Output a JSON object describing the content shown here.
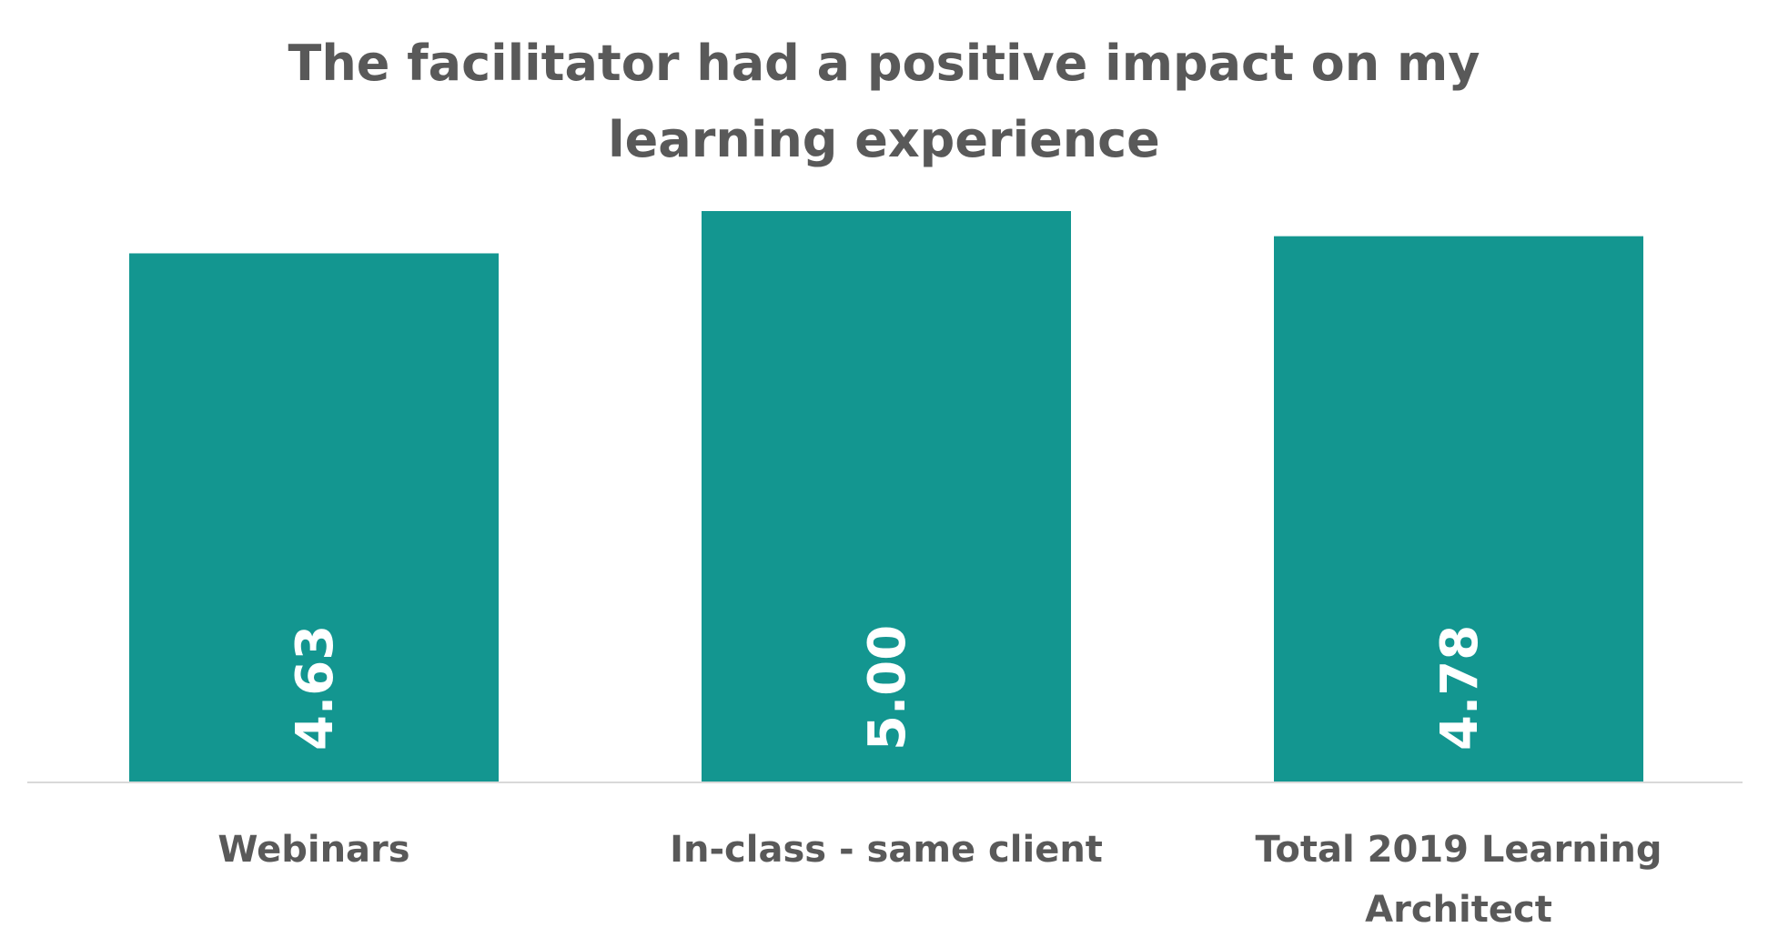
{
  "chart_data": {
    "type": "bar",
    "title_lines": [
      "The facilitator had a positive impact on my",
      "learning experience"
    ],
    "categories": [
      [
        "Webinars"
      ],
      [
        "In-class - same client"
      ],
      [
        "Total 2019 Learning",
        "Architect"
      ]
    ],
    "values": [
      4.63,
      5.0,
      4.78
    ],
    "data_labels": [
      "4.63",
      "5.00",
      "4.78"
    ],
    "bar_color": "#139690",
    "axis_color": "#d9d9d9",
    "text_color": "#595959",
    "ylim": [
      0,
      5.0
    ],
    "grid": false,
    "legend": "none",
    "xlabel": "",
    "ylabel": ""
  }
}
